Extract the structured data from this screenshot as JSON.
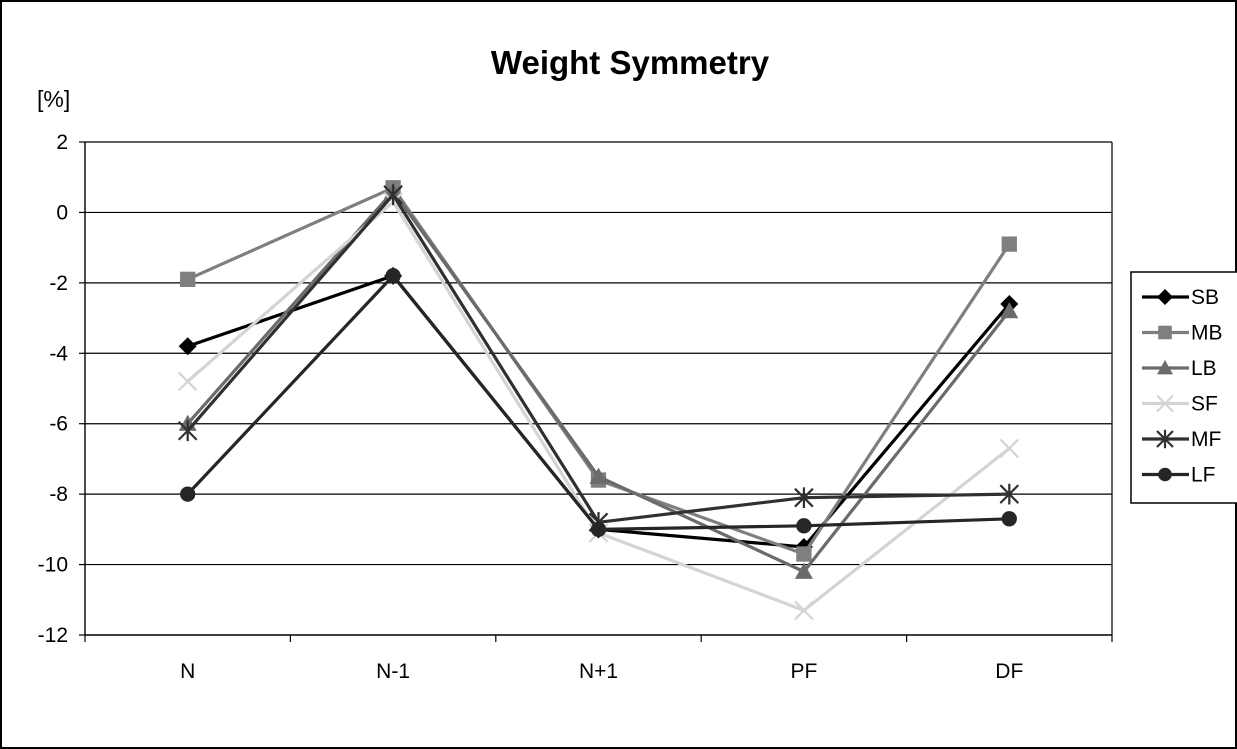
{
  "chart_data": {
    "type": "line",
    "title": "Weight Symmetry",
    "ylabel": "[%]",
    "xlabel": "",
    "categories": [
      "N",
      "N-1",
      "N+1",
      "PF",
      "DF"
    ],
    "ylim": [
      -12,
      2
    ],
    "yticks": [
      2,
      0,
      -2,
      -4,
      -6,
      -8,
      -10,
      -12
    ],
    "grid": "horizontal",
    "legend_position": "right",
    "series": [
      {
        "name": "SB",
        "values": [
          -3.8,
          -1.8,
          -9.0,
          -9.5,
          -2.6
        ],
        "color": "#000000",
        "marker": "diamond"
      },
      {
        "name": "MB",
        "values": [
          -1.9,
          0.7,
          -7.6,
          -9.7,
          -0.9
        ],
        "color": "#7f7f7f",
        "marker": "square"
      },
      {
        "name": "LB",
        "values": [
          -6.0,
          0.6,
          -7.5,
          -10.2,
          -2.8
        ],
        "color": "#6b6b6b",
        "marker": "triangle"
      },
      {
        "name": "SF",
        "values": [
          -4.8,
          0.3,
          -9.1,
          -11.3,
          -6.7
        ],
        "color": "#d4d4d4",
        "marker": "x"
      },
      {
        "name": "MF",
        "values": [
          -6.2,
          0.5,
          -8.8,
          -8.1,
          -8.0
        ],
        "color": "#303030",
        "marker": "star"
      },
      {
        "name": "LF",
        "values": [
          -8.0,
          -1.8,
          -9.0,
          -8.9,
          -8.7
        ],
        "color": "#262626",
        "marker": "circle"
      }
    ]
  }
}
